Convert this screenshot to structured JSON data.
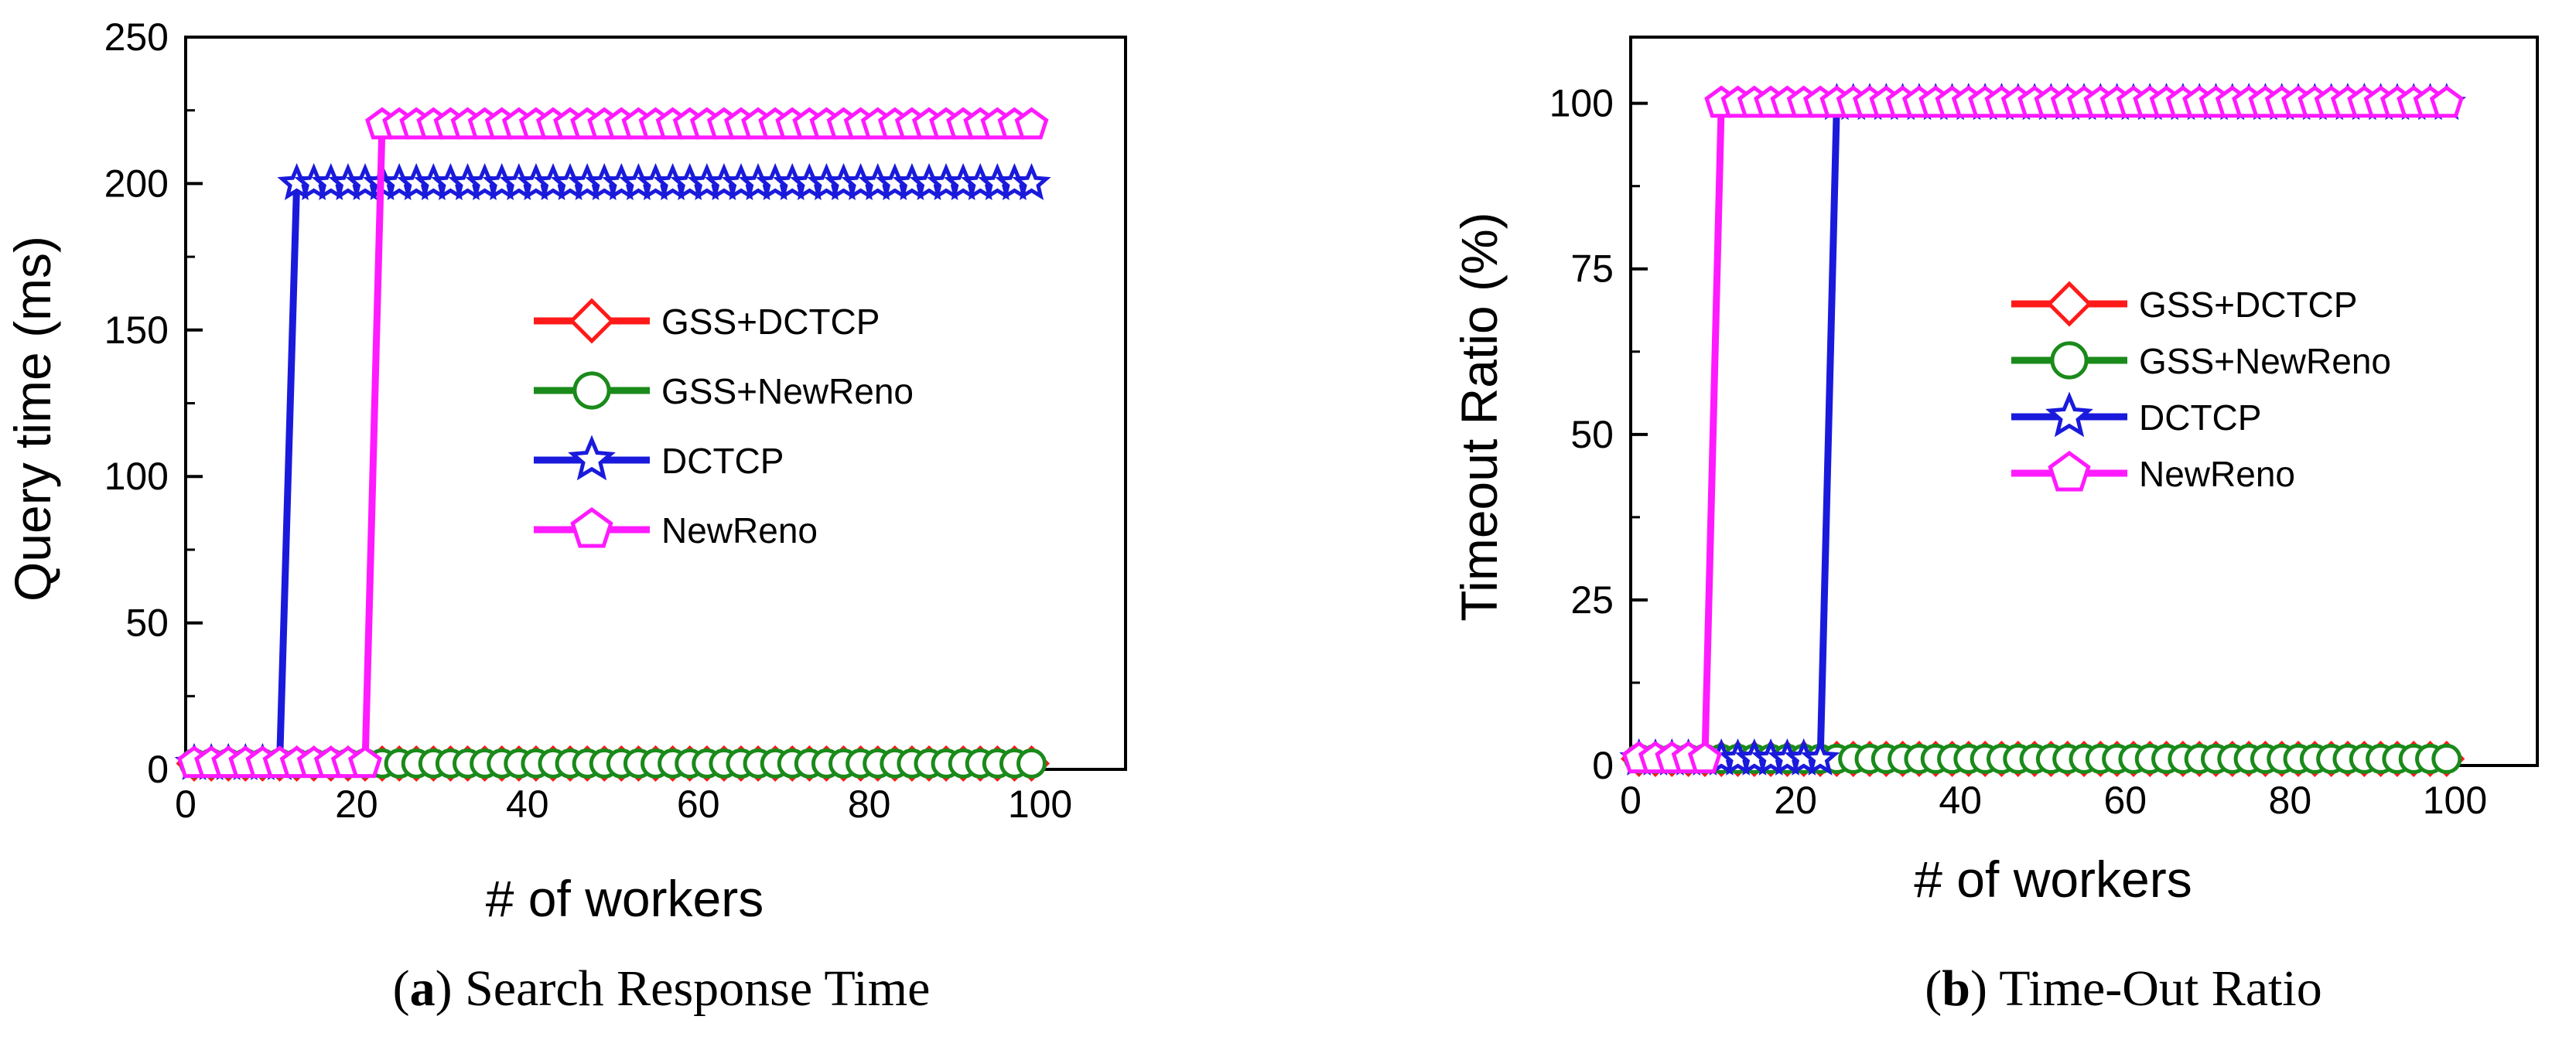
{
  "chart_data": [
    {
      "id": "a",
      "type": "line",
      "caption_letter": "a",
      "caption_open": "(",
      "caption_close": ")",
      "caption_text": " Search Response Time",
      "xlabel": "# of workers",
      "ylabel": "Query time (ms)",
      "xlim": [
        0,
        110
      ],
      "ylim": [
        0,
        250
      ],
      "xticks": [
        0,
        20,
        40,
        60,
        80,
        100
      ],
      "yticks": [
        0,
        50,
        100,
        150,
        200,
        250
      ],
      "legend_position": "center-right",
      "series": [
        {
          "name": "GSS+DCTCP",
          "color": "#ff1a1a",
          "marker": "diamond",
          "x": [
            1,
            3,
            5,
            7,
            9,
            11,
            13,
            15,
            17,
            19,
            21,
            23,
            25,
            27,
            29,
            31,
            33,
            35,
            37,
            39,
            41,
            43,
            45,
            47,
            49,
            51,
            53,
            55,
            57,
            59,
            61,
            63,
            65,
            67,
            69,
            71,
            73,
            75,
            77,
            79,
            81,
            83,
            85,
            87,
            89,
            91,
            93,
            95,
            97,
            99
          ],
          "y": [
            2,
            2,
            2,
            2,
            2,
            2,
            2,
            2,
            2,
            2,
            2,
            2,
            2,
            2,
            2,
            2,
            2,
            2,
            2,
            2,
            2,
            2,
            2,
            2,
            2,
            2,
            2,
            2,
            2,
            2,
            2,
            2,
            2,
            2,
            2,
            2,
            2,
            2,
            2,
            2,
            2,
            2,
            2,
            2,
            2,
            2,
            2,
            2,
            2,
            2
          ]
        },
        {
          "name": "GSS+NewReno",
          "color": "#1a8a1a",
          "marker": "circle",
          "x": [
            1,
            3,
            5,
            7,
            9,
            11,
            13,
            15,
            17,
            19,
            21,
            23,
            25,
            27,
            29,
            31,
            33,
            35,
            37,
            39,
            41,
            43,
            45,
            47,
            49,
            51,
            53,
            55,
            57,
            59,
            61,
            63,
            65,
            67,
            69,
            71,
            73,
            75,
            77,
            79,
            81,
            83,
            85,
            87,
            89,
            91,
            93,
            95,
            97,
            99
          ],
          "y": [
            2,
            2,
            2,
            2,
            2,
            2,
            2,
            2,
            2,
            2,
            2,
            2,
            2,
            2,
            2,
            2,
            2,
            2,
            2,
            2,
            2,
            2,
            2,
            2,
            2,
            2,
            2,
            2,
            2,
            2,
            2,
            2,
            2,
            2,
            2,
            2,
            2,
            2,
            2,
            2,
            2,
            2,
            2,
            2,
            2,
            2,
            2,
            2,
            2,
            2
          ]
        },
        {
          "name": "DCTCP",
          "color": "#1a1adc",
          "marker": "star",
          "x": [
            1,
            3,
            5,
            7,
            9,
            11,
            13,
            15,
            17,
            19,
            21,
            23,
            25,
            27,
            29,
            31,
            33,
            35,
            37,
            39,
            41,
            43,
            45,
            47,
            49,
            51,
            53,
            55,
            57,
            59,
            61,
            63,
            65,
            67,
            69,
            71,
            73,
            75,
            77,
            79,
            81,
            83,
            85,
            87,
            89,
            91,
            93,
            95,
            97,
            99
          ],
          "y": [
            2,
            2,
            2,
            2,
            2,
            2,
            200,
            200,
            200,
            200,
            200,
            200,
            200,
            200,
            200,
            200,
            200,
            200,
            200,
            200,
            200,
            200,
            200,
            200,
            200,
            200,
            200,
            200,
            200,
            200,
            200,
            200,
            200,
            200,
            200,
            200,
            200,
            200,
            200,
            200,
            200,
            200,
            200,
            200,
            200,
            200,
            200,
            200,
            200,
            200
          ]
        },
        {
          "name": "NewReno",
          "color": "#ff1aff",
          "marker": "pentagon",
          "x": [
            1,
            3,
            5,
            7,
            9,
            11,
            13,
            15,
            17,
            19,
            21,
            23,
            25,
            27,
            29,
            31,
            33,
            35,
            37,
            39,
            41,
            43,
            45,
            47,
            49,
            51,
            53,
            55,
            57,
            59,
            61,
            63,
            65,
            67,
            69,
            71,
            73,
            75,
            77,
            79,
            81,
            83,
            85,
            87,
            89,
            91,
            93,
            95,
            97,
            99
          ],
          "y": [
            2,
            2,
            2,
            2,
            2,
            2,
            2,
            2,
            2,
            2,
            2,
            220,
            220,
            220,
            220,
            220,
            220,
            220,
            220,
            220,
            220,
            220,
            220,
            220,
            220,
            220,
            220,
            220,
            220,
            220,
            220,
            220,
            220,
            220,
            220,
            220,
            220,
            220,
            220,
            220,
            220,
            220,
            220,
            220,
            220,
            220,
            220,
            220,
            220,
            220
          ]
        }
      ]
    },
    {
      "id": "b",
      "type": "line",
      "caption_letter": "b",
      "caption_open": "(",
      "caption_close": ")",
      "caption_text": " Time-Out Ratio",
      "xlabel": "# of workers",
      "ylabel": "Timeout Ratio (%)",
      "xlim": [
        0,
        110
      ],
      "ylim": [
        0,
        110
      ],
      "xticks": [
        0,
        20,
        40,
        60,
        80,
        100
      ],
      "yticks": [
        0,
        25,
        50,
        75,
        100
      ],
      "legend_position": "center-right",
      "series": [
        {
          "name": "GSS+DCTCP",
          "color": "#ff1a1a",
          "marker": "diamond",
          "x": [
            1,
            3,
            5,
            7,
            9,
            11,
            13,
            15,
            17,
            19,
            21,
            23,
            25,
            27,
            29,
            31,
            33,
            35,
            37,
            39,
            41,
            43,
            45,
            47,
            49,
            51,
            53,
            55,
            57,
            59,
            61,
            63,
            65,
            67,
            69,
            71,
            73,
            75,
            77,
            79,
            81,
            83,
            85,
            87,
            89,
            91,
            93,
            95,
            97,
            99
          ],
          "y": [
            1,
            1,
            1,
            1,
            1,
            1,
            1,
            1,
            1,
            1,
            1,
            1,
            1,
            1,
            1,
            1,
            1,
            1,
            1,
            1,
            1,
            1,
            1,
            1,
            1,
            1,
            1,
            1,
            1,
            1,
            1,
            1,
            1,
            1,
            1,
            1,
            1,
            1,
            1,
            1,
            1,
            1,
            1,
            1,
            1,
            1,
            1,
            1,
            1,
            1
          ]
        },
        {
          "name": "GSS+NewReno",
          "color": "#1a8a1a",
          "marker": "circle",
          "x": [
            1,
            3,
            5,
            7,
            9,
            11,
            13,
            15,
            17,
            19,
            21,
            23,
            25,
            27,
            29,
            31,
            33,
            35,
            37,
            39,
            41,
            43,
            45,
            47,
            49,
            51,
            53,
            55,
            57,
            59,
            61,
            63,
            65,
            67,
            69,
            71,
            73,
            75,
            77,
            79,
            81,
            83,
            85,
            87,
            89,
            91,
            93,
            95,
            97,
            99
          ],
          "y": [
            1,
            1,
            1,
            1,
            1,
            1,
            1,
            1,
            1,
            1,
            1,
            1,
            1,
            1,
            1,
            1,
            1,
            1,
            1,
            1,
            1,
            1,
            1,
            1,
            1,
            1,
            1,
            1,
            1,
            1,
            1,
            1,
            1,
            1,
            1,
            1,
            1,
            1,
            1,
            1,
            1,
            1,
            1,
            1,
            1,
            1,
            1,
            1,
            1,
            1
          ]
        },
        {
          "name": "DCTCP",
          "color": "#1a1adc",
          "marker": "star",
          "x": [
            1,
            3,
            5,
            7,
            9,
            11,
            13,
            15,
            17,
            19,
            21,
            23,
            25,
            27,
            29,
            31,
            33,
            35,
            37,
            39,
            41,
            43,
            45,
            47,
            49,
            51,
            53,
            55,
            57,
            59,
            61,
            63,
            65,
            67,
            69,
            71,
            73,
            75,
            77,
            79,
            81,
            83,
            85,
            87,
            89,
            91,
            93,
            95,
            97,
            99
          ],
          "y": [
            1,
            1,
            1,
            1,
            1,
            1,
            1,
            1,
            1,
            1,
            1,
            1,
            100,
            100,
            100,
            100,
            100,
            100,
            100,
            100,
            100,
            100,
            100,
            100,
            100,
            100,
            100,
            100,
            100,
            100,
            100,
            100,
            100,
            100,
            100,
            100,
            100,
            100,
            100,
            100,
            100,
            100,
            100,
            100,
            100,
            100,
            100,
            100,
            100,
            100
          ]
        },
        {
          "name": "NewReno",
          "color": "#ff1aff",
          "marker": "pentagon",
          "x": [
            1,
            3,
            5,
            7,
            9,
            11,
            13,
            15,
            17,
            19,
            21,
            23,
            25,
            27,
            29,
            31,
            33,
            35,
            37,
            39,
            41,
            43,
            45,
            47,
            49,
            51,
            53,
            55,
            57,
            59,
            61,
            63,
            65,
            67,
            69,
            71,
            73,
            75,
            77,
            79,
            81,
            83,
            85,
            87,
            89,
            91,
            93,
            95,
            97,
            99
          ],
          "y": [
            1,
            1,
            1,
            1,
            1,
            100,
            100,
            100,
            100,
            100,
            100,
            100,
            100,
            100,
            100,
            100,
            100,
            100,
            100,
            100,
            100,
            100,
            100,
            100,
            100,
            100,
            100,
            100,
            100,
            100,
            100,
            100,
            100,
            100,
            100,
            100,
            100,
            100,
            100,
            100,
            100,
            100,
            100,
            100,
            100,
            100,
            100,
            100,
            100,
            100
          ]
        }
      ]
    }
  ]
}
